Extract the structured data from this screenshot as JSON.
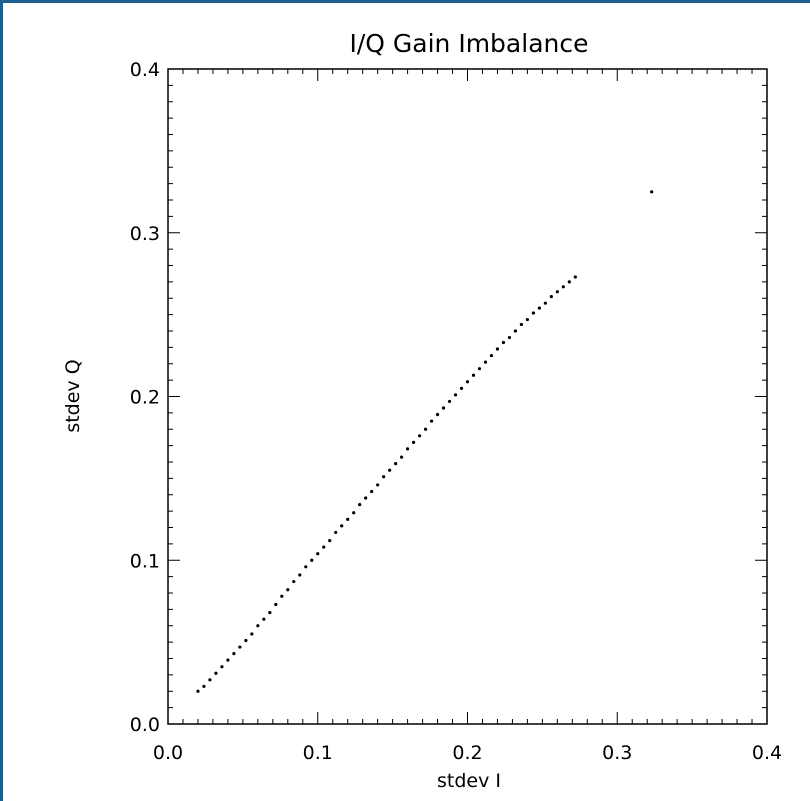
{
  "chart_data": {
    "type": "scatter",
    "title": "I/Q Gain Imbalance",
    "xlabel": "stdev I",
    "ylabel": "stdev Q",
    "xlim": [
      0.0,
      0.4
    ],
    "ylim": [
      0.0,
      0.4
    ],
    "xticks": [
      "0.0",
      "0.1",
      "0.2",
      "0.3",
      "0.4"
    ],
    "yticks": [
      "0.0",
      "0.1",
      "0.2",
      "0.3",
      "0.4"
    ],
    "grid": false,
    "series": [
      {
        "color": "#000000",
        "x": [
          0.02,
          0.024,
          0.028,
          0.032,
          0.036,
          0.04,
          0.044,
          0.048,
          0.052,
          0.056,
          0.06,
          0.064,
          0.068,
          0.072,
          0.076,
          0.08,
          0.084,
          0.088,
          0.092,
          0.096,
          0.1,
          0.104,
          0.108,
          0.112,
          0.116,
          0.12,
          0.124,
          0.128,
          0.132,
          0.136,
          0.14,
          0.144,
          0.148,
          0.152,
          0.156,
          0.16,
          0.164,
          0.168,
          0.172,
          0.176,
          0.18,
          0.184,
          0.188,
          0.192,
          0.196,
          0.2,
          0.204,
          0.208,
          0.212,
          0.216,
          0.22,
          0.224,
          0.228,
          0.232,
          0.236,
          0.24,
          0.244,
          0.248,
          0.252,
          0.256,
          0.26,
          0.264,
          0.268,
          0.272,
          0.323
        ],
        "y": [
          0.02,
          0.023,
          0.027,
          0.031,
          0.035,
          0.039,
          0.043,
          0.047,
          0.051,
          0.055,
          0.06,
          0.064,
          0.068,
          0.073,
          0.078,
          0.082,
          0.087,
          0.091,
          0.096,
          0.1,
          0.104,
          0.108,
          0.112,
          0.117,
          0.121,
          0.125,
          0.129,
          0.134,
          0.138,
          0.142,
          0.146,
          0.151,
          0.155,
          0.159,
          0.163,
          0.168,
          0.172,
          0.176,
          0.18,
          0.185,
          0.189,
          0.193,
          0.197,
          0.201,
          0.205,
          0.209,
          0.213,
          0.217,
          0.221,
          0.225,
          0.229,
          0.233,
          0.236,
          0.24,
          0.244,
          0.247,
          0.251,
          0.254,
          0.257,
          0.261,
          0.264,
          0.267,
          0.27,
          0.273,
          0.325
        ]
      }
    ]
  }
}
